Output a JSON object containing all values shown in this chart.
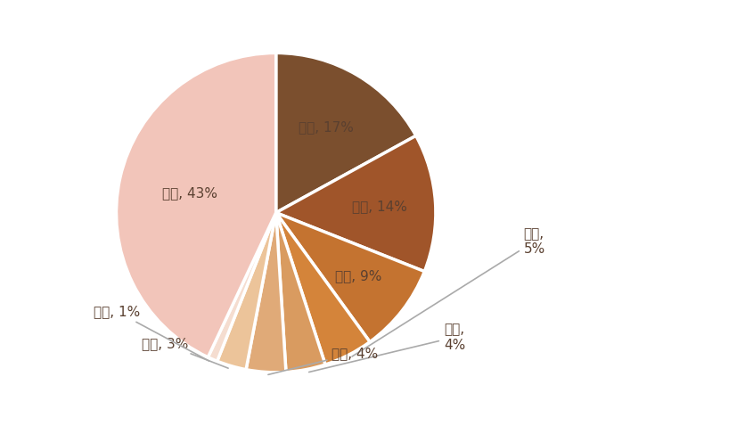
{
  "labels": [
    "雅迪",
    "爱玛",
    "台铃",
    "新日",
    "绿源",
    "小刀",
    "绿佳",
    "小牛",
    "其他"
  ],
  "values": [
    17,
    14,
    9,
    5,
    4,
    4,
    3,
    1,
    43
  ],
  "colors": [
    "#7B4F2E",
    "#A0552A",
    "#C47330",
    "#D4843A",
    "#D99B60",
    "#E0AA78",
    "#ECC49A",
    "#F5DDD0",
    "#F2C5BA"
  ],
  "startangle": 90,
  "background_color": "#ffffff",
  "label_color": "#5A4030",
  "line_color": "#aaaaaa",
  "font_size": 11,
  "inside_indices": [
    0,
    1,
    2,
    8
  ],
  "outside_indices": [
    3,
    4,
    5,
    6,
    7
  ]
}
